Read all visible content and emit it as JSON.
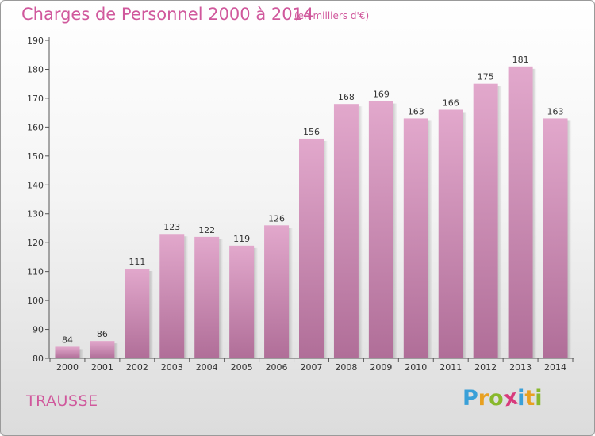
{
  "header": {
    "title": "Charges de Personnel 2000 à 2014",
    "subtitle": "(en milliers d'€)"
  },
  "footer": {
    "commune": "TRAUSSE",
    "logo": "Proxiti",
    "logo_letters": [
      {
        "ch": "P",
        "color": "#3aa0d8"
      },
      {
        "ch": "r",
        "color": "#e8a020"
      },
      {
        "ch": "o",
        "color": "#88b82c"
      },
      {
        "ch": "x",
        "color": "#d83a7c"
      },
      {
        "ch": "i",
        "color": "#3aa0d8"
      },
      {
        "ch": "t",
        "color": "#e8a020"
      },
      {
        "ch": "i",
        "color": "#88b82c"
      }
    ]
  },
  "colors": {
    "bar_top": "#e2a8cc",
    "bar_bottom": "#b06e98",
    "accent": "#d0589c"
  },
  "chart_data": {
    "type": "bar",
    "title": "Charges de Personnel 2000 à 2014",
    "subtitle": "(en milliers d'€)",
    "categories": [
      "2000",
      "2001",
      "2002",
      "2003",
      "2004",
      "2005",
      "2006",
      "2007",
      "2008",
      "2009",
      "2010",
      "2011",
      "2012",
      "2013",
      "2014"
    ],
    "values": [
      84,
      86,
      111,
      123,
      122,
      119,
      126,
      156,
      168,
      169,
      163,
      166,
      175,
      181,
      163
    ],
    "ylim": [
      80,
      190
    ],
    "yticks": [
      80,
      90,
      100,
      110,
      120,
      130,
      140,
      150,
      160,
      170,
      180,
      190
    ],
    "grid": false,
    "data_labels": true
  }
}
